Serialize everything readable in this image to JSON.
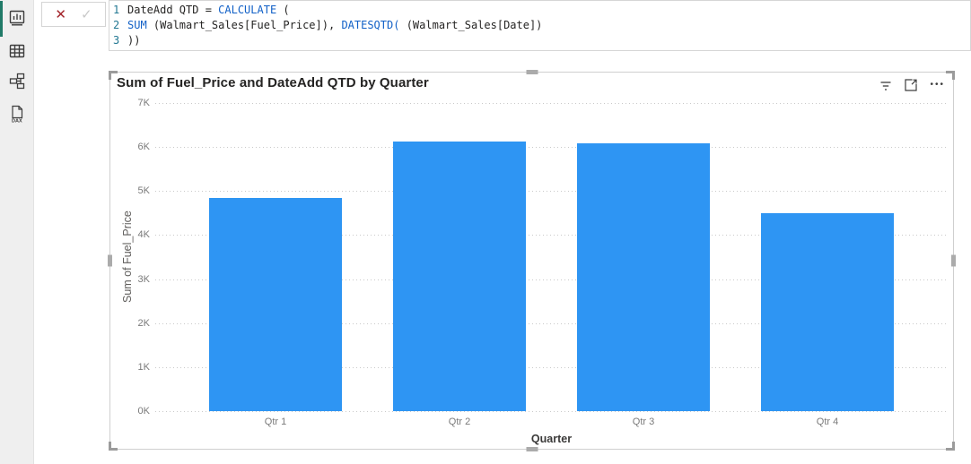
{
  "colors": {
    "accent_view": "#217a68",
    "bar_fill": "#2e95f3",
    "function_token": "#1160c7",
    "text_token": "#252423",
    "cancel_x": "#a4262c"
  },
  "sidebar": {
    "items": [
      {
        "id": "report-view",
        "label": "Report view",
        "active": true
      },
      {
        "id": "table-view",
        "label": "Table view",
        "active": false
      },
      {
        "id": "model-view",
        "label": "Model view",
        "active": false
      },
      {
        "id": "dax-query-view",
        "label": "DAX query view",
        "active": false
      }
    ],
    "dax_icon_text": "DAX"
  },
  "formula_bar": {
    "cancel_glyph": "✕",
    "commit_glyph": "✓",
    "lines": [
      {
        "num": "1",
        "tokens": [
          {
            "c": "text",
            "t": "DateAdd QTD = "
          },
          {
            "c": "fn",
            "t": "CALCULATE"
          },
          {
            "c": "text",
            "t": " ("
          }
        ]
      },
      {
        "num": "2",
        "tokens": [
          {
            "c": "fn",
            "t": "SUM"
          },
          {
            "c": "text",
            "t": " (Walmart_Sales[Fuel_Price]), "
          },
          {
            "c": "fn",
            "t": "DATESQTD("
          },
          {
            "c": "text",
            "t": " (Walmart_Sales[Date])"
          }
        ]
      },
      {
        "num": "3",
        "tokens": [
          {
            "c": "text",
            "t": "))"
          }
        ]
      }
    ]
  },
  "visual": {
    "title": "Sum of Fuel_Price and DateAdd QTD by Quarter",
    "header_icons": [
      "filter",
      "focus-mode",
      "more-options"
    ],
    "more_options_glyph": "•••"
  },
  "chart_data": {
    "type": "bar",
    "title": "Sum of Fuel_Price and DateAdd QTD by Quarter",
    "categories": [
      "Qtr 1",
      "Qtr 2",
      "Qtr 3",
      "Qtr 4"
    ],
    "values": [
      4850,
      6120,
      6080,
      4500
    ],
    "xlabel": "Quarter",
    "ylabel": "Sum of Fuel_Price",
    "ylim": [
      0,
      7000
    ],
    "yticks": [
      "0K",
      "1K",
      "2K",
      "3K",
      "4K",
      "5K",
      "6K",
      "7K"
    ],
    "grid": true,
    "legend": false,
    "bar_color": "#2e95f3"
  }
}
